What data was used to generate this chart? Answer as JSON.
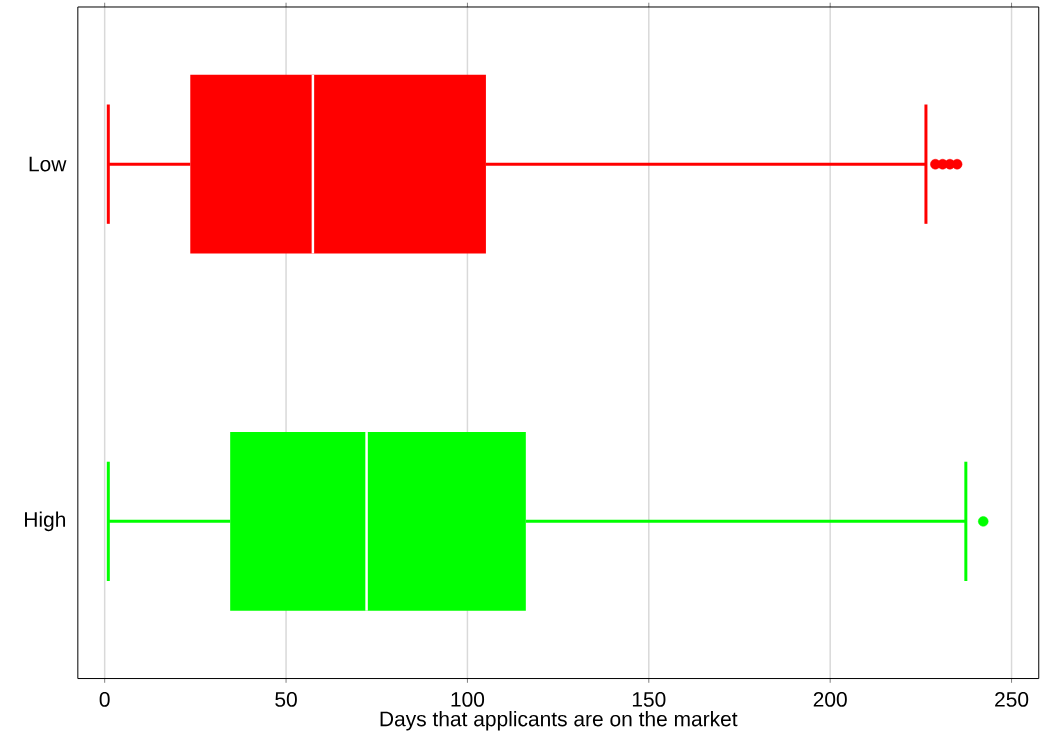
{
  "chart_data": {
    "type": "box",
    "orientation": "horizontal",
    "xlabel": "Days that applicants are on the market",
    "categories": [
      "Low",
      "High"
    ],
    "colors": [
      "#ff0000",
      "#00ff00"
    ],
    "boxes": [
      {
        "low": 1,
        "q1": 23.6,
        "median": 57.4,
        "q3": 105.1,
        "high": 226.4,
        "outliers": [
          229,
          231,
          233,
          235
        ]
      },
      {
        "low": 1,
        "q1": 34.6,
        "median": 72.2,
        "q3": 116.1,
        "high": 237.4,
        "outliers": [
          242.2
        ]
      }
    ],
    "xlim": [
      -7.4,
      257.5
    ],
    "xticks": [
      0,
      50,
      100,
      150,
      200,
      250
    ],
    "grid": "x",
    "marker": "circle"
  }
}
